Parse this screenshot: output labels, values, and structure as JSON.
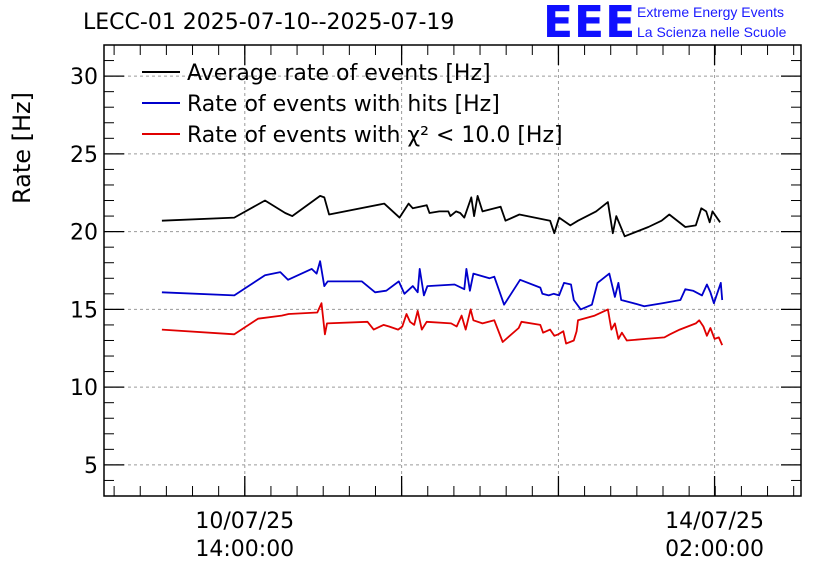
{
  "header": {
    "title": "LECC-01 2025-07-10--2025-07-19",
    "logo_text": "EEE",
    "logo_line1": "Extreme Energy Events",
    "logo_line2": "La Scienza nelle Scuole"
  },
  "colors": {
    "accent": "#0000ff",
    "black": "#000000",
    "blue": "#0000cc",
    "red": "#e00000"
  },
  "chart_data": {
    "type": "line",
    "title": "LECC-01 2025-07-10--2025-07-19",
    "ylabel": "Rate [Hz]",
    "xlabel": "",
    "ylim": [
      3,
      32
    ],
    "xlim": [
      0,
      100
    ],
    "yticks": [
      5,
      10,
      15,
      20,
      25,
      30
    ],
    "xticks": [
      {
        "x": 20.2,
        "line1": "10/07/25",
        "line2": "14:00:00"
      },
      {
        "x": 87.6,
        "line1": "14/07/25",
        "line2": "02:00:00"
      }
    ],
    "minor_xticks": [
      42.7,
      65.2
    ],
    "grid": true,
    "legend_position": "top-left",
    "series": [
      {
        "name": "Average rate of events [Hz]",
        "color": "#000000",
        "points": [
          [
            8.3,
            20.7
          ],
          [
            18.7,
            20.9
          ],
          [
            23.1,
            22.0
          ],
          [
            26.0,
            21.2
          ],
          [
            27.0,
            21.0
          ],
          [
            31.0,
            22.3
          ],
          [
            31.6,
            22.2
          ],
          [
            32.3,
            21.1
          ],
          [
            40.2,
            21.8
          ],
          [
            42.4,
            20.9
          ],
          [
            43.7,
            21.8
          ],
          [
            44.3,
            21.5
          ],
          [
            46.3,
            21.7
          ],
          [
            46.7,
            21.2
          ],
          [
            48.1,
            21.3
          ],
          [
            49.4,
            21.3
          ],
          [
            49.7,
            21.0
          ],
          [
            50.5,
            21.3
          ],
          [
            51.1,
            21.2
          ],
          [
            51.7,
            20.9
          ],
          [
            52.7,
            22.2
          ],
          [
            53.1,
            21.0
          ],
          [
            53.6,
            22.3
          ],
          [
            54.3,
            21.3
          ],
          [
            56.9,
            21.6
          ],
          [
            57.6,
            20.7
          ],
          [
            59.6,
            21.1
          ],
          [
            64.0,
            20.7
          ],
          [
            64.6,
            19.9
          ],
          [
            65.3,
            20.9
          ],
          [
            66.9,
            20.4
          ],
          [
            68.0,
            20.7
          ],
          [
            70.6,
            21.3
          ],
          [
            72.3,
            21.9
          ],
          [
            73.0,
            19.9
          ],
          [
            73.5,
            21.0
          ],
          [
            74.7,
            19.7
          ],
          [
            78.1,
            20.3
          ],
          [
            80.0,
            20.7
          ],
          [
            81.1,
            21.1
          ],
          [
            83.4,
            20.3
          ],
          [
            84.9,
            20.4
          ],
          [
            85.7,
            21.5
          ],
          [
            86.4,
            21.3
          ],
          [
            86.9,
            20.6
          ],
          [
            87.3,
            21.3
          ],
          [
            88.4,
            20.6
          ]
        ]
      },
      {
        "name": "Rate of events with hits [Hz]",
        "color": "#0000cc",
        "points": [
          [
            8.3,
            16.1
          ],
          [
            18.7,
            15.9
          ],
          [
            23.1,
            17.2
          ],
          [
            25.3,
            17.4
          ],
          [
            26.4,
            16.9
          ],
          [
            29.8,
            17.6
          ],
          [
            30.5,
            17.3
          ],
          [
            31.0,
            18.1
          ],
          [
            31.6,
            16.5
          ],
          [
            32.1,
            16.8
          ],
          [
            37.0,
            16.8
          ],
          [
            38.9,
            16.1
          ],
          [
            40.5,
            16.2
          ],
          [
            42.3,
            16.8
          ],
          [
            43.1,
            16.0
          ],
          [
            44.3,
            16.5
          ],
          [
            45.0,
            16.1
          ],
          [
            45.3,
            17.6
          ],
          [
            45.9,
            15.9
          ],
          [
            46.4,
            16.5
          ],
          [
            50.3,
            16.6
          ],
          [
            51.7,
            16.3
          ],
          [
            52.0,
            17.6
          ],
          [
            52.5,
            16.2
          ],
          [
            53.0,
            17.3
          ],
          [
            55.3,
            17.0
          ],
          [
            56.0,
            17.1
          ],
          [
            57.4,
            15.3
          ],
          [
            59.7,
            16.9
          ],
          [
            62.6,
            16.4
          ],
          [
            62.9,
            16.0
          ],
          [
            63.8,
            15.9
          ],
          [
            64.5,
            16.0
          ],
          [
            65.3,
            15.9
          ],
          [
            66.0,
            16.7
          ],
          [
            67.0,
            16.6
          ],
          [
            67.4,
            15.6
          ],
          [
            68.4,
            15.0
          ],
          [
            70.0,
            15.3
          ],
          [
            70.8,
            16.7
          ],
          [
            72.5,
            17.3
          ],
          [
            73.3,
            15.8
          ],
          [
            73.8,
            16.7
          ],
          [
            74.2,
            15.6
          ],
          [
            76.0,
            15.4
          ],
          [
            77.5,
            15.2
          ],
          [
            80.1,
            15.4
          ],
          [
            82.7,
            15.6
          ],
          [
            83.4,
            16.3
          ],
          [
            84.5,
            16.2
          ],
          [
            85.8,
            15.9
          ],
          [
            86.5,
            16.6
          ],
          [
            87.0,
            16.1
          ],
          [
            87.5,
            15.4
          ],
          [
            88.5,
            16.7
          ],
          [
            88.7,
            15.6
          ]
        ]
      },
      {
        "name": "Rate of events with χ² < 10.0 [Hz]",
        "color": "#e00000",
        "points": [
          [
            8.3,
            13.7
          ],
          [
            18.7,
            13.4
          ],
          [
            22.1,
            14.4
          ],
          [
            25.5,
            14.6
          ],
          [
            26.5,
            14.7
          ],
          [
            30.6,
            14.8
          ],
          [
            31.2,
            15.4
          ],
          [
            31.7,
            13.4
          ],
          [
            32.0,
            14.1
          ],
          [
            37.8,
            14.2
          ],
          [
            38.7,
            13.7
          ],
          [
            40.1,
            14.0
          ],
          [
            40.9,
            13.9
          ],
          [
            42.2,
            13.7
          ],
          [
            42.8,
            13.9
          ],
          [
            43.4,
            14.7
          ],
          [
            43.9,
            14.2
          ],
          [
            44.5,
            14.0
          ],
          [
            45.0,
            14.9
          ],
          [
            45.6,
            13.7
          ],
          [
            46.3,
            14.2
          ],
          [
            49.8,
            14.1
          ],
          [
            50.6,
            13.9
          ],
          [
            51.3,
            14.6
          ],
          [
            51.9,
            13.7
          ],
          [
            52.6,
            15.0
          ],
          [
            53.0,
            14.3
          ],
          [
            54.3,
            14.1
          ],
          [
            56.0,
            14.3
          ],
          [
            57.2,
            12.9
          ],
          [
            59.5,
            13.8
          ],
          [
            59.9,
            14.2
          ],
          [
            62.6,
            14.0
          ],
          [
            63.0,
            13.5
          ],
          [
            64.0,
            13.7
          ],
          [
            64.6,
            13.3
          ],
          [
            65.2,
            13.4
          ],
          [
            65.9,
            13.6
          ],
          [
            66.3,
            12.8
          ],
          [
            67.4,
            13.0
          ],
          [
            67.8,
            13.6
          ],
          [
            68.0,
            14.3
          ],
          [
            70.4,
            14.6
          ],
          [
            72.3,
            15.0
          ],
          [
            72.8,
            13.7
          ],
          [
            73.3,
            14.1
          ],
          [
            73.8,
            13.1
          ],
          [
            74.3,
            13.5
          ],
          [
            75.0,
            13.0
          ],
          [
            77.7,
            13.1
          ],
          [
            80.4,
            13.2
          ],
          [
            81.2,
            13.4
          ],
          [
            82.6,
            13.7
          ],
          [
            84.9,
            14.1
          ],
          [
            85.4,
            14.3
          ],
          [
            86.0,
            13.9
          ],
          [
            86.5,
            13.3
          ],
          [
            87.0,
            13.8
          ],
          [
            87.6,
            13.1
          ],
          [
            88.2,
            13.2
          ],
          [
            88.7,
            12.7
          ]
        ]
      }
    ]
  }
}
